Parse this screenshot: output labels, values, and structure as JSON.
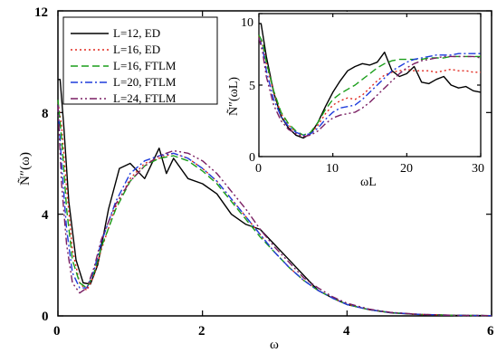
{
  "chart_data": [
    {
      "type": "line",
      "xlabel": "ω",
      "ylabel": "Ñ″(ω)",
      "xlim": [
        0,
        6
      ],
      "ylim": [
        0,
        12
      ],
      "x_ticks": [
        "0",
        "2",
        "4",
        "6"
      ],
      "y_ticks": [
        "0",
        "4",
        "8",
        "12"
      ],
      "legend": "top-left",
      "series": [
        {
          "name": "L=12,  ED",
          "color": "#000000",
          "dash": "solid",
          "x": [
            0,
            0.03,
            0.08,
            0.15,
            0.25,
            0.35,
            0.45,
            0.55,
            0.7,
            0.85,
            1.0,
            1.2,
            1.4,
            1.5,
            1.6,
            1.8,
            2.0,
            2.2,
            2.4,
            2.6,
            2.8,
            3.0,
            3.2,
            3.4,
            3.6,
            3.8,
            4.0,
            4.3,
            4.6,
            5.0,
            5.5,
            6.0
          ],
          "y": [
            9.3,
            9.3,
            7.5,
            4.5,
            2.2,
            1.3,
            1.25,
            2.0,
            4.2,
            5.8,
            6.0,
            5.4,
            6.6,
            5.6,
            6.2,
            5.4,
            5.2,
            4.8,
            4.0,
            3.6,
            3.4,
            2.8,
            2.2,
            1.6,
            1.0,
            0.7,
            0.45,
            0.25,
            0.12,
            0.05,
            0.02,
            0.01
          ]
        },
        {
          "name": "L=16,  ED",
          "color": "#e0281e",
          "dash": "dot",
          "x": [
            0,
            0.05,
            0.12,
            0.2,
            0.3,
            0.4,
            0.5,
            0.6,
            0.8,
            1.0,
            1.2,
            1.4,
            1.6,
            1.8,
            2.0,
            2.2,
            2.4,
            2.6,
            2.8,
            3.0,
            3.2,
            3.4,
            3.6,
            3.8,
            4.0,
            4.3,
            4.6,
            5.0,
            5.5,
            6.0
          ],
          "y": [
            8.4,
            7.5,
            5.0,
            2.6,
            1.3,
            1.0,
            1.6,
            2.6,
            4.3,
            5.4,
            6.0,
            6.2,
            6.4,
            6.2,
            5.8,
            5.3,
            4.6,
            3.9,
            3.2,
            2.5,
            1.9,
            1.4,
            1.0,
            0.7,
            0.45,
            0.25,
            0.13,
            0.06,
            0.02,
            0.01
          ]
        },
        {
          "name": "L=16,  FTLM",
          "color": "#1a9e1a",
          "dash": "dash",
          "x": [
            0,
            0.05,
            0.12,
            0.2,
            0.3,
            0.4,
            0.5,
            0.6,
            0.8,
            1.0,
            1.2,
            1.4,
            1.6,
            1.8,
            2.0,
            2.2,
            2.4,
            2.6,
            2.8,
            3.0,
            3.2,
            3.4,
            3.6,
            3.8,
            4.0,
            4.3,
            4.6,
            5.0,
            5.5,
            6.0
          ],
          "y": [
            8.5,
            7.0,
            4.2,
            2.2,
            1.3,
            1.1,
            1.7,
            2.7,
            4.2,
            5.3,
            5.9,
            6.2,
            6.3,
            6.1,
            5.7,
            5.2,
            4.5,
            3.8,
            3.1,
            2.5,
            1.9,
            1.4,
            1.0,
            0.7,
            0.45,
            0.25,
            0.13,
            0.06,
            0.02,
            0.01
          ]
        },
        {
          "name": "L=20,  FTLM",
          "color": "#1e3cdc",
          "dash": "dashdot",
          "x": [
            0,
            0.05,
            0.12,
            0.2,
            0.3,
            0.4,
            0.5,
            0.6,
            0.8,
            1.0,
            1.2,
            1.4,
            1.6,
            1.8,
            2.0,
            2.2,
            2.4,
            2.6,
            2.8,
            3.0,
            3.2,
            3.4,
            3.6,
            3.8,
            4.0,
            4.3,
            4.6,
            5.0,
            5.5,
            6.0
          ],
          "y": [
            8.3,
            6.0,
            3.4,
            1.7,
            1.1,
            1.1,
            1.8,
            2.9,
            4.5,
            5.6,
            6.1,
            6.3,
            6.4,
            6.2,
            5.8,
            5.3,
            4.6,
            3.9,
            3.2,
            2.5,
            1.9,
            1.4,
            1.0,
            0.7,
            0.45,
            0.25,
            0.13,
            0.06,
            0.02,
            0.01
          ]
        },
        {
          "name": "L=24,  FTLM",
          "color": "#7a1f63",
          "dash": "dashdotdot",
          "x": [
            0,
            0.05,
            0.12,
            0.2,
            0.3,
            0.4,
            0.5,
            0.6,
            0.8,
            1.0,
            1.2,
            1.4,
            1.6,
            1.8,
            2.0,
            2.2,
            2.4,
            2.6,
            2.8,
            3.0,
            3.2,
            3.4,
            3.6,
            3.8,
            4.0,
            4.3,
            4.6,
            5.0,
            5.5,
            6.0
          ],
          "y": [
            8.3,
            5.2,
            2.8,
            1.3,
            0.9,
            1.1,
            1.9,
            3.0,
            4.4,
            5.3,
            5.9,
            6.3,
            6.5,
            6.4,
            6.1,
            5.6,
            4.9,
            4.2,
            3.4,
            2.7,
            2.1,
            1.5,
            1.1,
            0.75,
            0.5,
            0.27,
            0.14,
            0.06,
            0.02,
            0.01
          ]
        }
      ]
    },
    {
      "type": "line",
      "xlabel": "ωL",
      "ylabel": "Ñ″(ωL)",
      "xlim": [
        0,
        30
      ],
      "ylim": [
        0,
        10
      ],
      "x_ticks": [
        "0",
        "10",
        "20",
        "30"
      ],
      "y_ticks": [
        "0",
        "5",
        "10"
      ],
      "series": [
        {
          "color": "#000000",
          "dash": "solid",
          "x": [
            0,
            0.3,
            1,
            2,
            3,
            4,
            5,
            6,
            7,
            8,
            9,
            10,
            11,
            12,
            13,
            14,
            15,
            16,
            17,
            18,
            19,
            20,
            21,
            22,
            23,
            24,
            25,
            26,
            27,
            28,
            29,
            30
          ],
          "y": [
            9.3,
            9.3,
            7.0,
            4.5,
            2.8,
            2.0,
            1.5,
            1.3,
            1.6,
            2.4,
            3.5,
            4.5,
            5.3,
            6.0,
            6.3,
            6.5,
            6.4,
            6.6,
            7.3,
            6.0,
            5.6,
            5.8,
            6.3,
            5.2,
            5.1,
            5.4,
            5.6,
            5.0,
            4.8,
            4.9,
            4.6,
            4.5
          ]
        },
        {
          "color": "#e0281e",
          "dash": "dot",
          "x": [
            0,
            0.5,
            1,
            2,
            3,
            4,
            5,
            6,
            7,
            8,
            9,
            10,
            11,
            12,
            13,
            14,
            15,
            16,
            17,
            18,
            19,
            20,
            21,
            22,
            23,
            24,
            25,
            26,
            27,
            28,
            29,
            30
          ],
          "y": [
            8.4,
            7.8,
            6.5,
            4.5,
            3.0,
            2.2,
            1.7,
            1.4,
            1.6,
            2.2,
            3.0,
            3.6,
            3.9,
            4.1,
            4.0,
            4.3,
            4.8,
            5.3,
            5.7,
            5.9,
            6.0,
            6.1,
            6.0,
            6.0,
            6.0,
            5.9,
            6.0,
            6.1,
            6.0,
            6.0,
            5.9,
            5.9
          ]
        },
        {
          "color": "#1a9e1a",
          "dash": "dash",
          "x": [
            0,
            0.5,
            1,
            2,
            3,
            4,
            5,
            6,
            7,
            8,
            9,
            10,
            11,
            12,
            13,
            14,
            15,
            16,
            17,
            18,
            19,
            20,
            21,
            22,
            23,
            24,
            25,
            26,
            27,
            28,
            29,
            30
          ],
          "y": [
            8.5,
            8.0,
            6.6,
            4.6,
            3.1,
            2.3,
            1.8,
            1.5,
            1.7,
            2.4,
            3.3,
            4.0,
            4.4,
            4.7,
            5.0,
            5.4,
            5.8,
            6.2,
            6.5,
            6.7,
            6.8,
            6.8,
            6.8,
            6.8,
            6.9,
            6.9,
            6.9,
            7.0,
            7.0,
            7.0,
            7.0,
            7.0
          ]
        },
        {
          "color": "#1e3cdc",
          "dash": "dashdot",
          "x": [
            0,
            0.5,
            1,
            2,
            3,
            4,
            5,
            6,
            7,
            8,
            9,
            10,
            11,
            12,
            13,
            14,
            15,
            16,
            17,
            18,
            19,
            20,
            21,
            22,
            23,
            24,
            25,
            26,
            27,
            28,
            29,
            30
          ],
          "y": [
            8.3,
            7.6,
            6.0,
            4.0,
            2.8,
            2.1,
            1.7,
            1.5,
            1.6,
            2.0,
            2.6,
            3.1,
            3.4,
            3.5,
            3.6,
            4.0,
            4.5,
            5.0,
            5.5,
            6.0,
            6.3,
            6.6,
            6.8,
            6.9,
            7.0,
            7.1,
            7.1,
            7.1,
            7.2,
            7.2,
            7.2,
            7.2
          ]
        },
        {
          "color": "#7a1f63",
          "dash": "dashdotdot",
          "x": [
            0,
            0.5,
            1,
            2,
            3,
            4,
            5,
            6,
            7,
            8,
            9,
            10,
            11,
            12,
            13,
            14,
            15,
            16,
            17,
            18,
            19,
            20,
            21,
            22,
            23,
            24,
            25,
            26,
            27,
            28,
            29,
            30
          ],
          "y": [
            8.3,
            7.3,
            5.6,
            3.6,
            2.5,
            1.9,
            1.6,
            1.4,
            1.5,
            1.8,
            2.3,
            2.7,
            2.9,
            3.0,
            3.1,
            3.4,
            3.8,
            4.3,
            4.8,
            5.3,
            5.8,
            6.2,
            6.5,
            6.7,
            6.8,
            6.9,
            7.0,
            7.0,
            7.0,
            7.0,
            7.0,
            6.9
          ]
        }
      ]
    }
  ]
}
